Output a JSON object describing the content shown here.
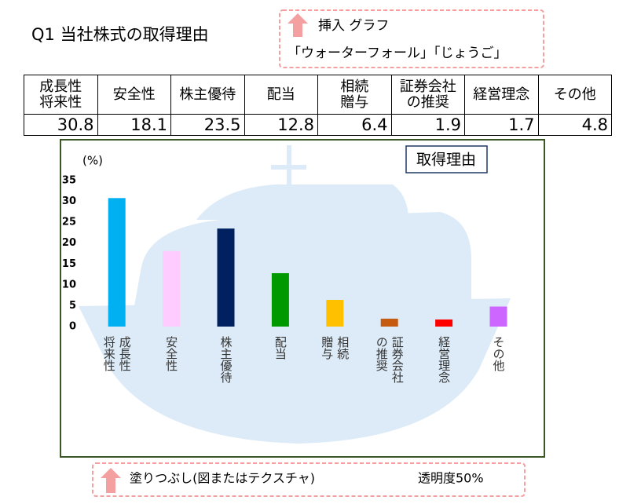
{
  "title": "Q1 当社株式の取得理由",
  "top_note": {
    "line1": "挿入 グラフ",
    "line2": "「ウォーターフォール」「じょうご」"
  },
  "bottom_note": {
    "left": "塗りつぶし(図またはテクスチャ)",
    "right": "透明度50%"
  },
  "chart_data": {
    "type": "bar",
    "title": "取得理由",
    "y_unit": "(%)",
    "categories": [
      "成長性\n将来性",
      "安全性",
      "株主優待",
      "配当",
      "相続\n贈与",
      "証券会社\nの推奨",
      "経営理念",
      "その他"
    ],
    "values": [
      30.8,
      18.1,
      23.5,
      12.8,
      6.4,
      1.9,
      1.7,
      4.8
    ],
    "colors": [
      "#00b0f0",
      "#ffccff",
      "#002060",
      "#009900",
      "#ffc000",
      "#c55a11",
      "#ff0000",
      "#cc66ff"
    ],
    "ylim": [
      0,
      35
    ],
    "yticks": [
      0,
      5,
      10,
      15,
      20,
      25,
      30,
      35
    ]
  }
}
